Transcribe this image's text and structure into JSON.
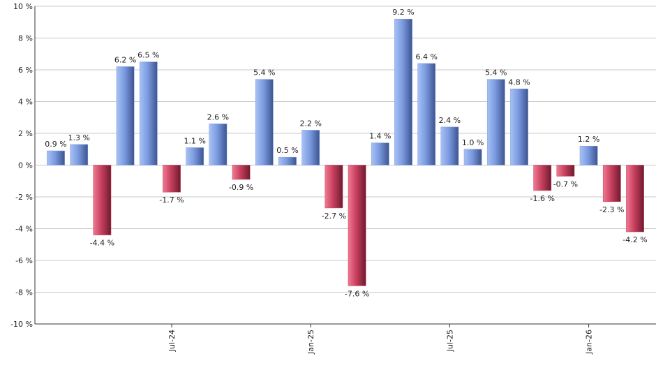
{
  "chart_data": {
    "type": "bar",
    "categories": [
      null,
      null,
      null,
      null,
      null,
      "Jul-24",
      null,
      null,
      null,
      null,
      null,
      "Jan-25",
      null,
      null,
      null,
      null,
      null,
      "Jul-25",
      null,
      null,
      null,
      null,
      null,
      "Jan-26",
      null,
      null
    ],
    "values": [
      0.9,
      1.3,
      -4.4,
      6.2,
      6.5,
      -1.7,
      1.1,
      2.6,
      -0.9,
      5.4,
      0.5,
      2.2,
      -2.7,
      -7.6,
      1.4,
      9.2,
      6.4,
      2.4,
      1.0,
      5.4,
      4.8,
      -1.6,
      -0.7,
      1.2,
      -2.3,
      -4.2
    ],
    "value_labels": [
      "0.9 %",
      "1.3 %",
      "-4.4 %",
      "6.2 %",
      "6.5 %",
      "-1.7 %",
      "1.1 %",
      "2.6 %",
      "-0.9 %",
      "5.4 %",
      "0.5 %",
      "2.2 %",
      "-2.7 %",
      "-7.6 %",
      "1.4 %",
      "9.2 %",
      "6.4 %",
      "2.4 %",
      "1.0 %",
      "5.4 %",
      "4.8 %",
      "-1.6 %",
      "-0.7 %",
      "1.2 %",
      "-2.3 %",
      "-4.2 %"
    ],
    "positive_color": "#7b9be0",
    "negative_color": "#c8405f",
    "ylim": [
      -10,
      10
    ],
    "yticks": [
      {
        "value": -10,
        "label": "-10 %"
      },
      {
        "value": -8,
        "label": "-8 %"
      },
      {
        "value": -6,
        "label": "-6 %"
      },
      {
        "value": -4,
        "label": "-4 %"
      },
      {
        "value": -2,
        "label": "-2 %"
      },
      {
        "value": 0,
        "label": "0 %"
      },
      {
        "value": 2,
        "label": "2 %"
      },
      {
        "value": 4,
        "label": "4 %"
      },
      {
        "value": 6,
        "label": "6 %"
      },
      {
        "value": 8,
        "label": "8 %"
      },
      {
        "value": 10,
        "label": "10 %"
      }
    ],
    "grid": true
  }
}
